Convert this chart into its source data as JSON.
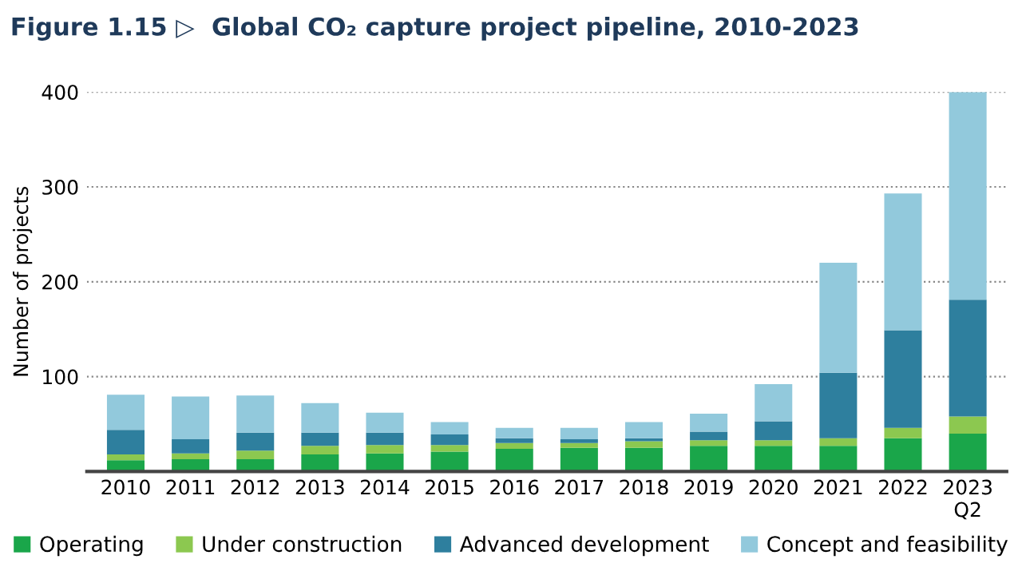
{
  "chart_data": {
    "type": "bar",
    "stacked": true,
    "title": "Figure 1.15 ▷  Global CO₂ capture project pipeline, 2010-2023",
    "ylabel": "Number of projects",
    "categories": [
      "2010",
      "2011",
      "2012",
      "2013",
      "2014",
      "2015",
      "2016",
      "2017",
      "2018",
      "2019",
      "2020",
      "2021",
      "2022",
      "2023\nQ2"
    ],
    "series": [
      {
        "name": "Operating",
        "color": "#1aa64a",
        "values": [
          12,
          13,
          13,
          18,
          19,
          21,
          24,
          25,
          25,
          27,
          27,
          27,
          35,
          40
        ]
      },
      {
        "name": "Under construction",
        "color": "#8cc850",
        "values": [
          6,
          6,
          9,
          9,
          9,
          7,
          6,
          5,
          7,
          6,
          6,
          8,
          11,
          18
        ]
      },
      {
        "name": "Advanced development",
        "color": "#2e7f9e",
        "values": [
          26,
          15,
          19,
          14,
          13,
          11,
          5,
          4,
          3,
          9,
          20,
          69,
          103,
          123
        ]
      },
      {
        "name": "Concept and feasibility",
        "color": "#92c9dc",
        "values": [
          37,
          45,
          39,
          31,
          21,
          13,
          11,
          12,
          17,
          19,
          39,
          116,
          144,
          219
        ]
      }
    ],
    "ylim": [
      0,
      400
    ],
    "yticks": [
      100,
      200,
      300,
      400
    ],
    "grid": "y",
    "legend": "bottom"
  }
}
